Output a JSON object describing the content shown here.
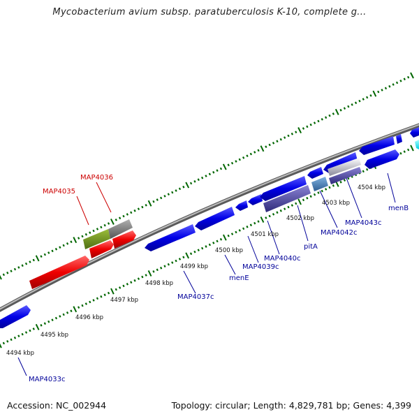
{
  "title": "Mycobacterium avium subsp. paratuberculosis K-10, complete g...",
  "footer": {
    "accession": "Accession: NC_002944",
    "summary": "Topology: circular; Length: 4,829,781 bp; Genes: 4,399"
  },
  "scale_labels": [
    "4494 kbp",
    "4495 kbp",
    "4496 kbp",
    "4497 kbp",
    "4498 kbp",
    "4499 kbp",
    "4500 kbp",
    "4501 kbp",
    "4502 kbp",
    "4503 kbp",
    "4504 kbp"
  ],
  "gene_labels": {
    "forward": [
      "MAP4035",
      "MAP4036"
    ],
    "reverse": [
      "MAP4033c",
      "MAP4037c",
      "menE",
      "MAP4039c",
      "MAP4040c",
      "pitA",
      "MAP4042c",
      "MAP4043c",
      "menB"
    ]
  },
  "colors": {
    "forward_label": "#cc0000",
    "reverse_label": "#000099",
    "reverse_gene": "#0000ee",
    "forward_gene": "#ee0000",
    "tick": "#006600",
    "backbone": "#888888"
  }
}
